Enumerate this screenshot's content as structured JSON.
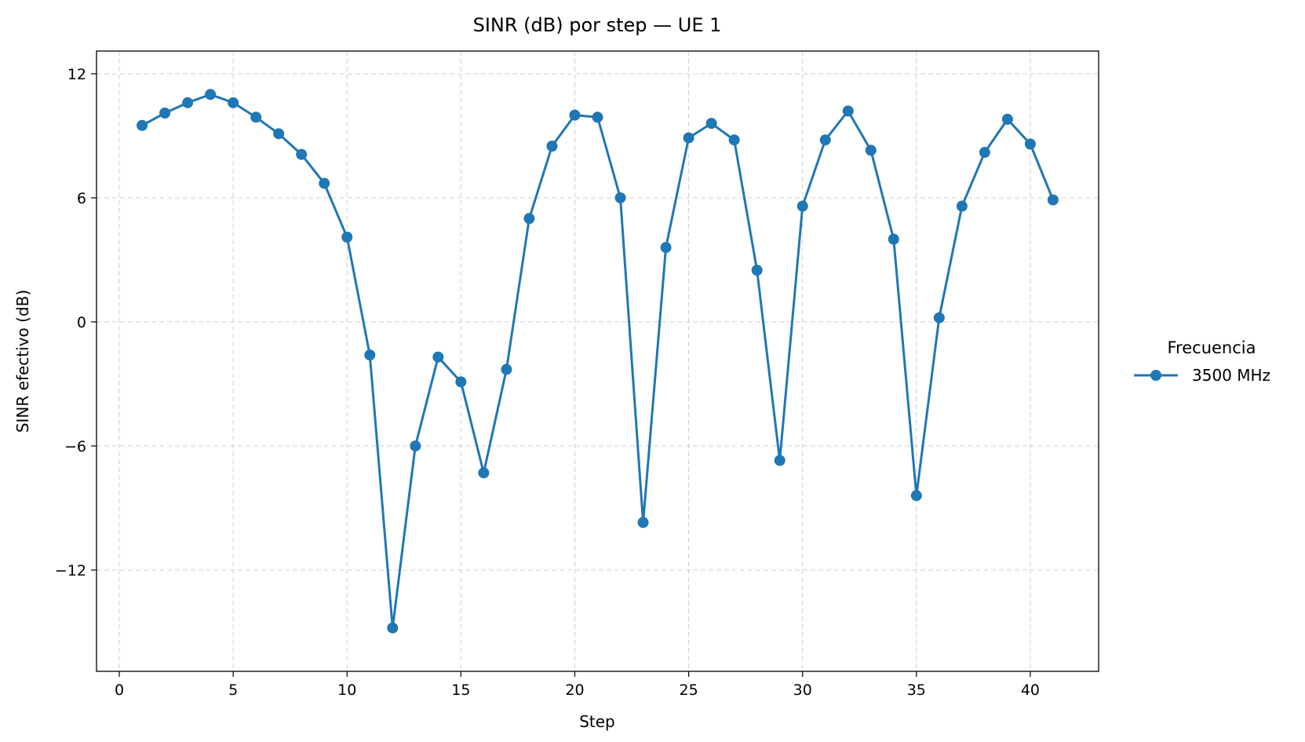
{
  "chart_data": {
    "type": "line",
    "title": "SINR (dB) por step — UE 1",
    "xlabel": "Step",
    "ylabel": "SINR efectivo (dB)",
    "xlim": [
      -1,
      43
    ],
    "ylim": [
      -16.9,
      13.1
    ],
    "xticks": [
      0,
      5,
      10,
      15,
      20,
      25,
      30,
      35,
      40
    ],
    "yticks": [
      12,
      6,
      0,
      -6,
      -12
    ],
    "ytick_labels": [
      "12",
      "6",
      "0",
      "−6",
      "−12"
    ],
    "grid": true,
    "legend": {
      "title": "Frecuencia",
      "placement": "outside-right"
    },
    "series": [
      {
        "name": "3500 MHz",
        "color": "#1f77b4",
        "marker": "circle",
        "x": [
          1,
          2,
          3,
          4,
          5,
          6,
          7,
          8,
          9,
          10,
          11,
          12,
          13,
          14,
          15,
          16,
          17,
          18,
          19,
          20,
          21,
          22,
          23,
          24,
          25,
          26,
          27,
          28,
          29,
          30,
          31,
          32,
          33,
          34,
          35,
          36,
          37,
          38,
          39,
          40,
          41
        ],
        "y": [
          9.5,
          10.1,
          10.6,
          11.0,
          10.6,
          9.9,
          9.1,
          8.1,
          6.7,
          4.1,
          -1.6,
          -14.8,
          -6.0,
          -1.7,
          -2.9,
          -7.3,
          -2.3,
          5.0,
          8.5,
          10.0,
          9.9,
          6.0,
          -9.7,
          3.6,
          8.9,
          9.6,
          8.8,
          2.5,
          -6.7,
          5.6,
          8.8,
          10.2,
          8.3,
          4.0,
          -8.4,
          0.2,
          5.6,
          8.2,
          9.8,
          8.6,
          5.9
        ]
      }
    ]
  }
}
